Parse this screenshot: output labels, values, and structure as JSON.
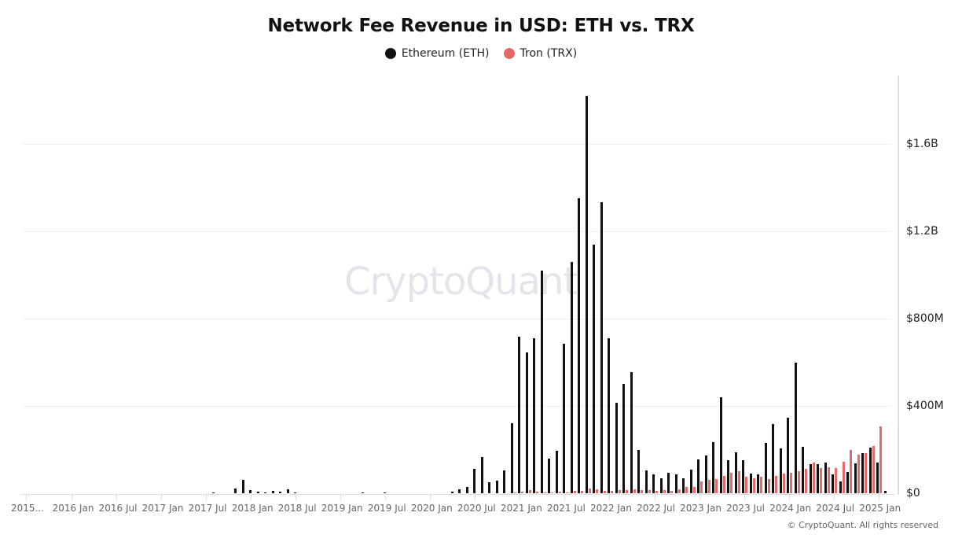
{
  "title": "Network Fee Revenue in USD: ETH vs. TRX",
  "legend": [
    {
      "label": "Ethereum (ETH)",
      "color": "#111111"
    },
    {
      "label": "Tron (TRX)",
      "color": "#e46a6a"
    }
  ],
  "watermark": "CryptoQuant",
  "footer": "© CryptoQuant. All rights reserved",
  "y_ticks": [
    "$0",
    "$400M",
    "$800M",
    "$1.2B",
    "$1.6B"
  ],
  "x_ticks": [
    "2015...",
    "2016 Jan",
    "2016 Jul",
    "2017 Jan",
    "2017 Jul",
    "2018 Jan",
    "2018 Jul",
    "2019 Jan",
    "2019 Jul",
    "2020 Jan",
    "2020 Jul",
    "2021 Jan",
    "2021 Jul",
    "2022 Jan",
    "2022 Jul",
    "2023 Jan",
    "2023 Jul",
    "2024 Jan",
    "2024 Jul",
    "2025 Jan"
  ],
  "chart_data": {
    "type": "bar",
    "title": "Network Fee Revenue in USD: ETH vs. TRX",
    "xlabel": "",
    "ylabel": "USD",
    "ylim": [
      0,
      1900000000
    ],
    "y_ticks": [
      0,
      400000000,
      800000000,
      1200000000,
      1600000000
    ],
    "grid": true,
    "legend_position": "top",
    "categories": [
      "2017-08",
      "2017-11",
      "2017-12",
      "2018-01",
      "2018-02",
      "2018-03",
      "2018-04",
      "2018-05",
      "2018-06",
      "2018-07",
      "2019-04",
      "2019-07",
      "2020-04",
      "2020-05",
      "2020-06",
      "2020-07",
      "2020-08",
      "2020-09",
      "2020-10",
      "2020-11",
      "2020-12",
      "2021-01",
      "2021-02",
      "2021-03",
      "2021-04",
      "2021-05",
      "2021-06",
      "2021-07",
      "2021-08",
      "2021-09",
      "2021-10",
      "2021-11",
      "2021-12",
      "2022-01",
      "2022-02",
      "2022-03",
      "2022-04",
      "2022-05",
      "2022-06",
      "2022-07",
      "2022-08",
      "2022-09",
      "2022-10",
      "2022-11",
      "2022-12",
      "2023-01",
      "2023-02",
      "2023-03",
      "2023-04",
      "2023-05",
      "2023-06",
      "2023-07",
      "2023-08",
      "2023-09",
      "2023-10",
      "2023-11",
      "2023-12",
      "2024-01",
      "2024-02",
      "2024-03",
      "2024-04",
      "2024-05",
      "2024-06",
      "2024-07",
      "2024-08",
      "2024-09",
      "2024-10",
      "2024-11",
      "2024-12",
      "2025-01",
      "2025-02"
    ],
    "series": [
      {
        "name": "Ethereum (ETH)",
        "color": "#111111",
        "values": [
          2,
          22,
          61,
          15,
          6,
          4,
          10,
          6,
          18,
          5,
          2,
          2,
          7,
          18,
          29,
          112,
          166,
          50,
          58,
          105,
          321,
          717,
          645,
          710,
          1020,
          159,
          195,
          685,
          1060,
          1350,
          1820,
          1140,
          1335,
          710,
          415,
          500,
          555,
          198,
          105,
          87,
          68,
          94,
          86,
          68,
          108,
          155,
          173,
          234,
          440,
          151,
          187,
          151,
          90,
          86,
          231,
          317,
          205,
          346,
          598,
          213,
          133,
          133,
          140,
          86,
          54,
          97,
          137,
          184,
          209,
          140,
          11
        ]
      },
      {
        "name": "Tron (TRX)",
        "color": "#e46a6a",
        "values": [
          0,
          0,
          0,
          0,
          0,
          0,
          0,
          0,
          0,
          0,
          0,
          0,
          0,
          0,
          0,
          0,
          0,
          0,
          0,
          0,
          3,
          8,
          14,
          6,
          4,
          4,
          6,
          5,
          10,
          12,
          20,
          18,
          12,
          12,
          14,
          16,
          18,
          14,
          14,
          12,
          14,
          12,
          18,
          28,
          30,
          55,
          62,
          65,
          80,
          95,
          100,
          75,
          70,
          75,
          65,
          80,
          90,
          95,
          100,
          110,
          140,
          115,
          120,
          115,
          145,
          200,
          175,
          185,
          215,
          305,
          0
        ]
      }
    ],
    "units": "USD millions"
  }
}
